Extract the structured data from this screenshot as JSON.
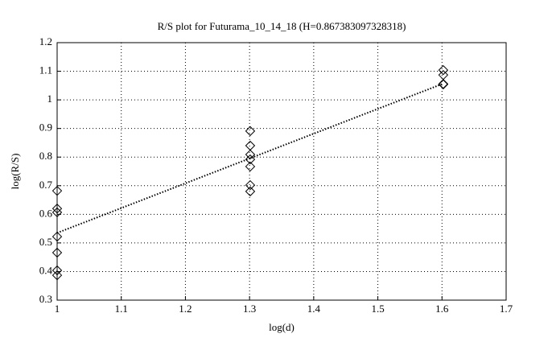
{
  "chart_data": {
    "type": "scatter",
    "title": "R/S plot for Futurama_10_14_18 (H=0.867383097328318)",
    "x_label": "log(d)",
    "y_label": "log(R/S)",
    "series": [
      {
        "marker": "diamond",
        "color": "#000000",
        "x": [
          1,
          1,
          1,
          1,
          1,
          1,
          1,
          1.301,
          1.301,
          1.301,
          1.301,
          1.301,
          1.301,
          1.301,
          1.602,
          1.602,
          1.602,
          1.602
        ],
        "values": [
          0.682,
          0.62,
          0.607,
          0.522,
          0.466,
          0.404,
          0.387,
          0.891,
          0.84,
          0.809,
          0.792,
          0.767,
          0.702,
          0.68,
          1.104,
          1.087,
          1.056,
          1.054
        ]
      },
      {
        "line": "dotted",
        "color": "#000000",
        "x": [
          1,
          1.602
        ],
        "values": [
          0.535,
          1.057
        ]
      }
    ],
    "xlim": [
      1,
      1.7
    ],
    "xticks": [
      1,
      1.1,
      1.2,
      1.3,
      1.4,
      1.5,
      1.6,
      1.7
    ],
    "ylim": [
      0.3,
      1.2
    ],
    "yticks": [
      0.3,
      0.4,
      0.5,
      0.6,
      0.7,
      0.8,
      0.9,
      1,
      1.1,
      1.2
    ],
    "grid": true
  }
}
